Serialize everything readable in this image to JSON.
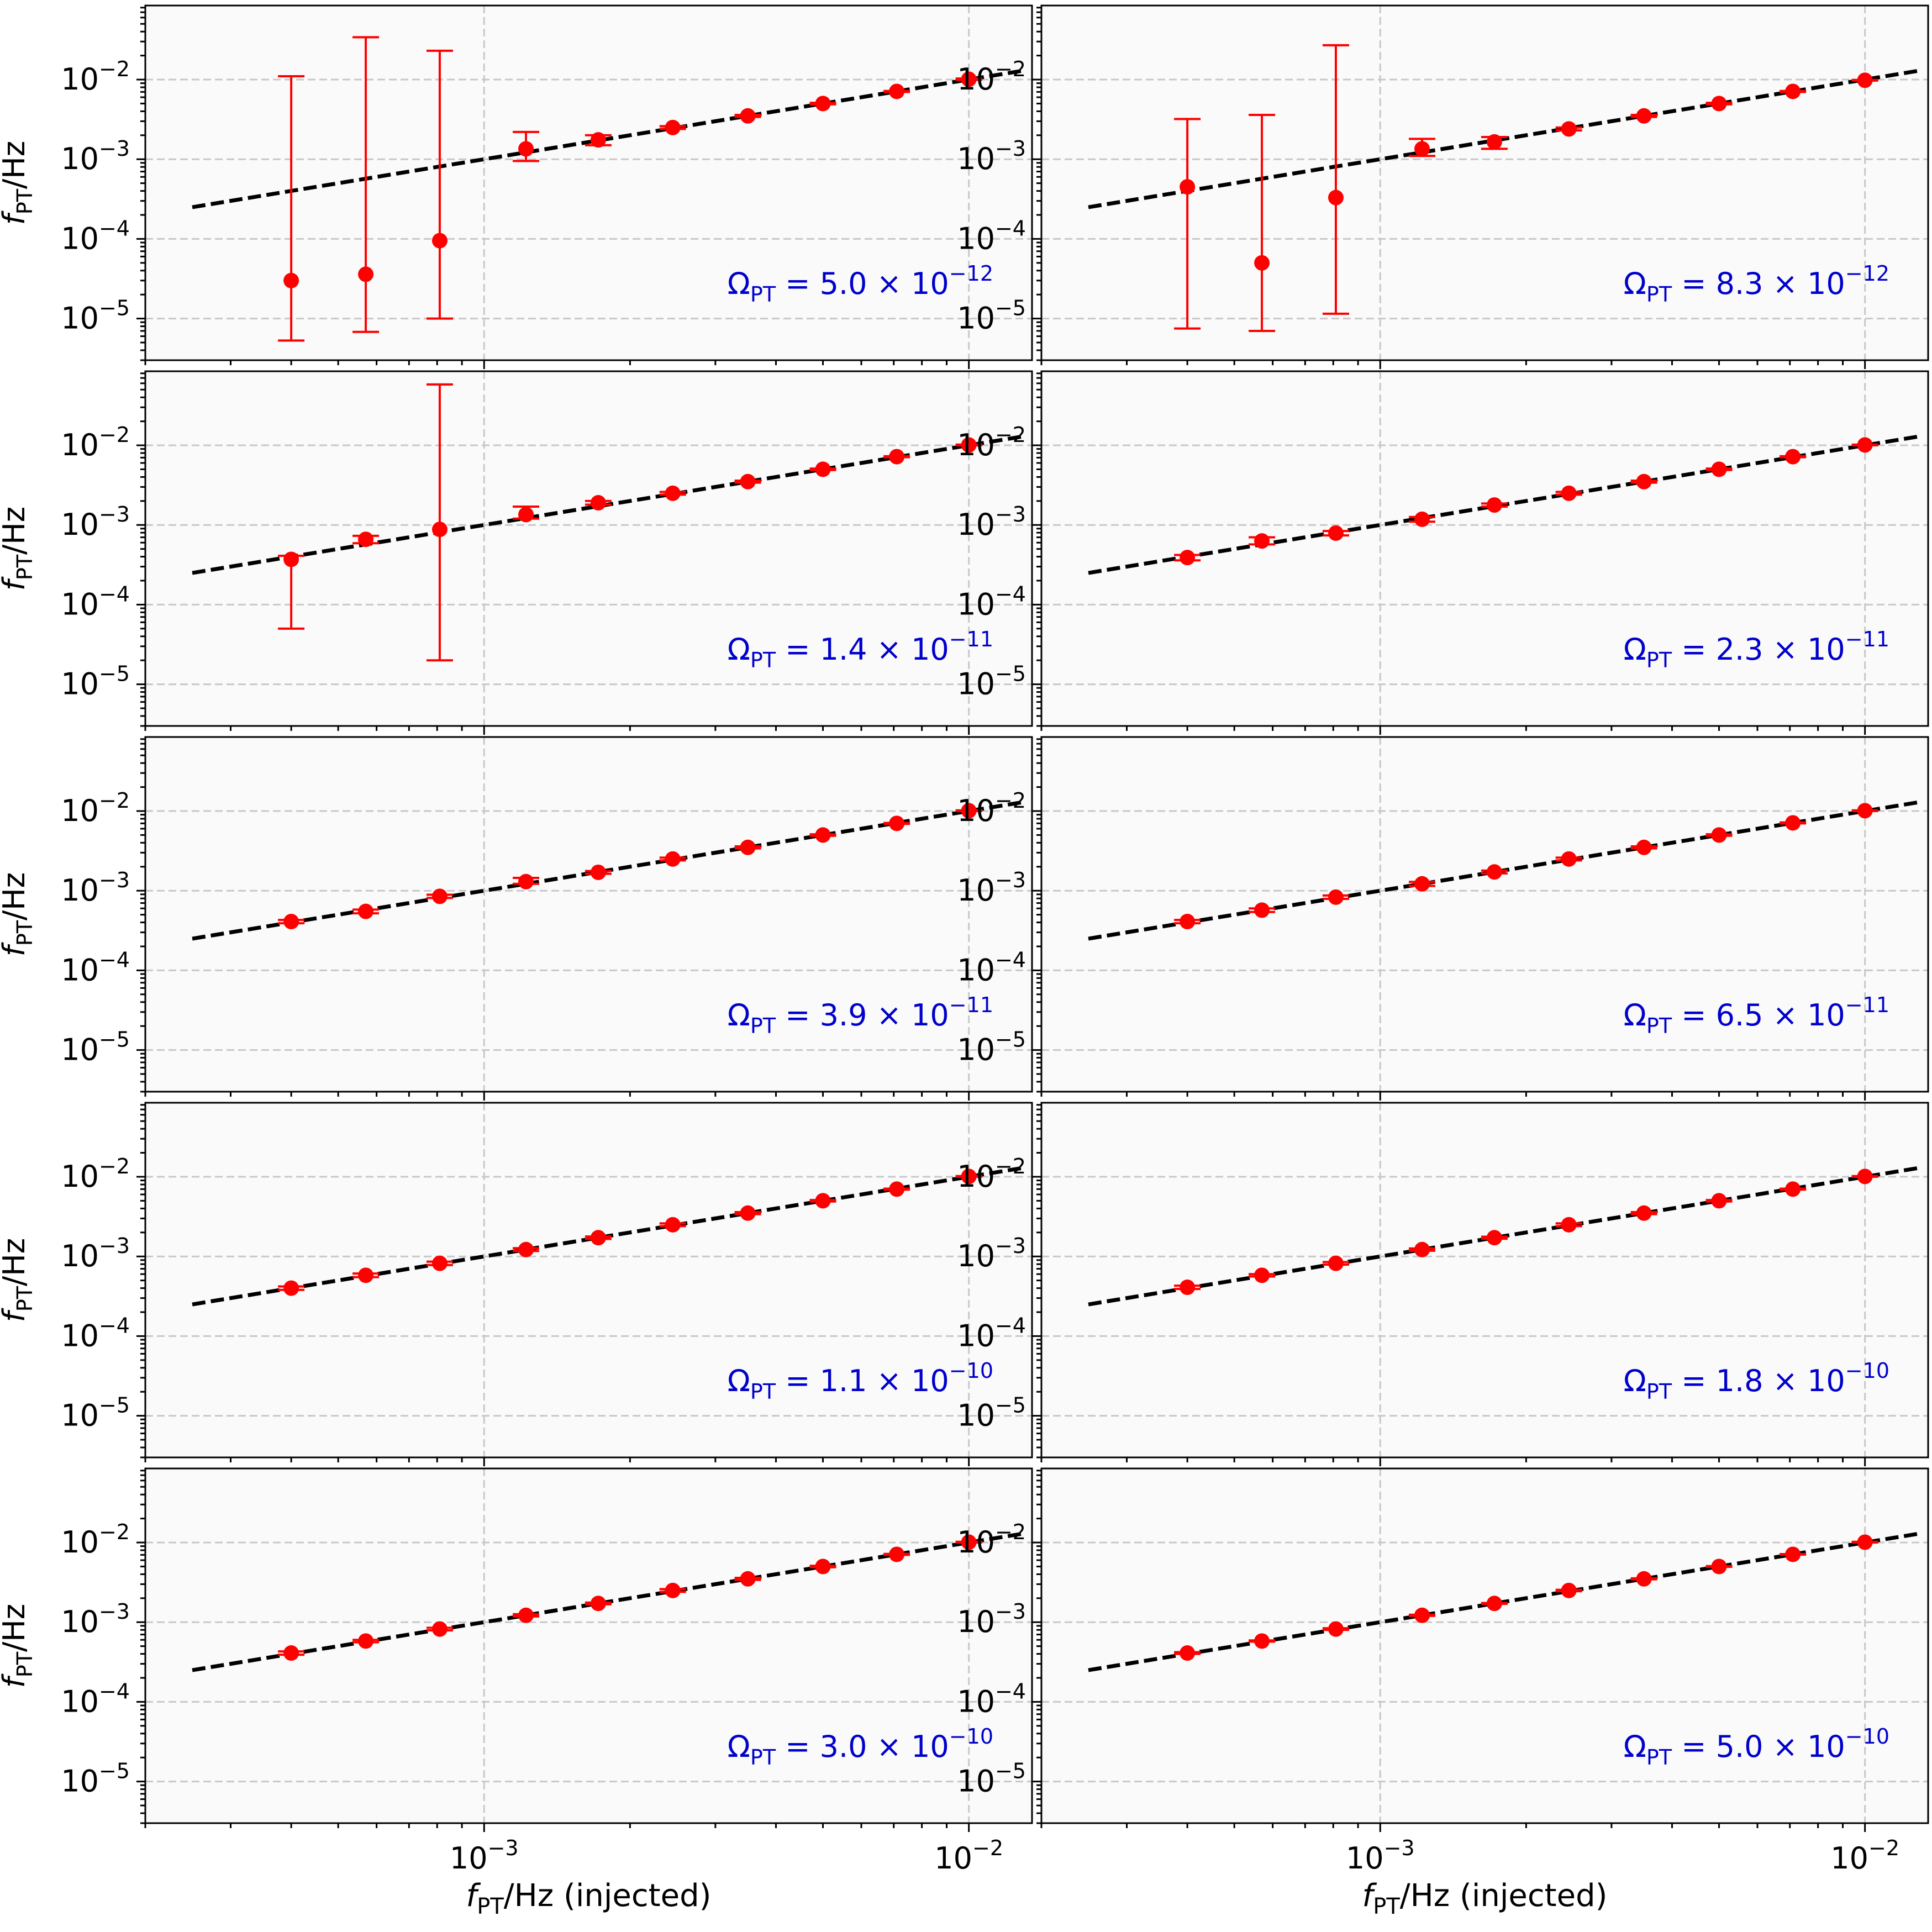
{
  "figure": {
    "x_label_main": "f",
    "x_label_sub": "PT",
    "x_label_rest": "/Hz (injected)",
    "y_label_main": "f",
    "y_label_sub": "PT",
    "y_label_rest": "/Hz",
    "x_ticks": [
      {
        "value": 0.001,
        "base": "10",
        "exp": "−3"
      },
      {
        "value": 0.01,
        "base": "10",
        "exp": "−2"
      }
    ],
    "y_ticks": [
      {
        "value": 0.01,
        "base": "10",
        "exp": "−2"
      },
      {
        "value": 0.001,
        "base": "10",
        "exp": "−3"
      },
      {
        "value": 0.0001,
        "base": "10",
        "exp": "−4"
      },
      {
        "value": 1e-05,
        "base": "10",
        "exp": "−5"
      }
    ],
    "colors": {
      "points": "#ff0000",
      "errorbars": "#ff0000",
      "fit_line": "#000000",
      "annotation": "#0000cc",
      "panel_background": "#fafafa",
      "grid": "#c8c8c8"
    }
  },
  "chart_data": [
    {
      "type": "scatter",
      "scale": "log-log",
      "grid": true,
      "xlim": [
        0.0002,
        0.0135
      ],
      "ylim": [
        3e-06,
        0.085
      ],
      "x_injected": [
        0.0004,
        0.00057,
        0.00081,
        0.00122,
        0.00172,
        0.00245,
        0.0035,
        0.005,
        0.0071,
        0.01
      ],
      "y_recovered": [
        3e-05,
        3.6e-05,
        9.5e-05,
        0.00135,
        0.00175,
        0.0025,
        0.0035,
        0.005,
        0.0071,
        0.0101
      ],
      "y_err_low": [
        5.3e-06,
        6.8e-06,
        1e-05,
        0.00095,
        0.0015,
        0.0024,
        0.0034,
        0.0049,
        0.007,
        0.0099
      ],
      "y_err_high": [
        0.011,
        0.034,
        0.023,
        0.0022,
        0.002,
        0.0026,
        0.0036,
        0.0051,
        0.0072,
        0.0103
      ],
      "reference_line": {
        "style": "dashed",
        "x_range": [
          0.00025,
          0.013
        ],
        "y_equals_x": true
      },
      "annotation": {
        "prefix": "Ω",
        "sub": "PT",
        "text": " = 5.0 × 10",
        "exp": "−12"
      }
    },
    {
      "type": "scatter",
      "scale": "log-log",
      "grid": true,
      "xlim": [
        0.0002,
        0.0135
      ],
      "ylim": [
        3e-06,
        0.085
      ],
      "x_injected": [
        0.0004,
        0.00057,
        0.00081,
        0.00122,
        0.00172,
        0.00245,
        0.0035,
        0.005,
        0.0071,
        0.01
      ],
      "y_recovered": [
        0.00045,
        5e-05,
        0.00033,
        0.00135,
        0.00165,
        0.0024,
        0.0035,
        0.005,
        0.0071,
        0.0098
      ],
      "y_err_low": [
        7.5e-06,
        7e-06,
        1.15e-05,
        0.0011,
        0.00135,
        0.0023,
        0.0034,
        0.0049,
        0.007,
        0.0097
      ],
      "y_err_high": [
        0.0032,
        0.0036,
        0.027,
        0.0018,
        0.0019,
        0.0025,
        0.0036,
        0.0051,
        0.0072,
        0.0099
      ],
      "reference_line": {
        "style": "dashed",
        "x_range": [
          0.00025,
          0.013
        ],
        "y_equals_x": true
      },
      "annotation": {
        "prefix": "Ω",
        "sub": "PT",
        "text": " = 8.3 × 10",
        "exp": "−12"
      }
    },
    {
      "type": "scatter",
      "scale": "log-log",
      "grid": true,
      "xlim": [
        0.0002,
        0.0135
      ],
      "ylim": [
        3e-06,
        0.085
      ],
      "x_injected": [
        0.0004,
        0.00057,
        0.00081,
        0.00122,
        0.00172,
        0.00245,
        0.0035,
        0.005,
        0.0071,
        0.01
      ],
      "y_recovered": [
        0.00037,
        0.00066,
        0.00088,
        0.00135,
        0.0019,
        0.0025,
        0.0035,
        0.005,
        0.0072,
        0.0101
      ],
      "y_err_low": [
        5e-05,
        0.00059,
        2e-05,
        0.0012,
        0.0018,
        0.0024,
        0.0034,
        0.0049,
        0.0071,
        0.01
      ],
      "y_err_high": [
        0.00041,
        0.00073,
        0.058,
        0.0017,
        0.002,
        0.0026,
        0.0036,
        0.0051,
        0.0073,
        0.0102
      ],
      "reference_line": {
        "style": "dashed",
        "x_range": [
          0.00025,
          0.013
        ],
        "y_equals_x": true
      },
      "annotation": {
        "prefix": "Ω",
        "sub": "PT",
        "text": " = 1.4 × 10",
        "exp": "−11"
      }
    },
    {
      "type": "scatter",
      "scale": "log-log",
      "grid": true,
      "xlim": [
        0.0002,
        0.0135
      ],
      "ylim": [
        3e-06,
        0.085
      ],
      "x_injected": [
        0.0004,
        0.00057,
        0.00081,
        0.00122,
        0.00172,
        0.00245,
        0.0035,
        0.005,
        0.0071,
        0.01
      ],
      "y_recovered": [
        0.00039,
        0.00063,
        0.00079,
        0.00118,
        0.00178,
        0.0025,
        0.0035,
        0.005,
        0.0072,
        0.0101
      ],
      "y_err_low": [
        0.00036,
        0.00057,
        0.00074,
        0.0011,
        0.0017,
        0.0024,
        0.0034,
        0.0049,
        0.0071,
        0.01
      ],
      "y_err_high": [
        0.00042,
        0.0007,
        0.00084,
        0.00126,
        0.00186,
        0.0026,
        0.0036,
        0.0051,
        0.0073,
        0.0102
      ],
      "reference_line": {
        "style": "dashed",
        "x_range": [
          0.00025,
          0.013
        ],
        "y_equals_x": true
      },
      "annotation": {
        "prefix": "Ω",
        "sub": "PT",
        "text": " = 2.3 × 10",
        "exp": "−11"
      }
    },
    {
      "type": "scatter",
      "scale": "log-log",
      "grid": true,
      "xlim": [
        0.0002,
        0.0135
      ],
      "ylim": [
        3e-06,
        0.085
      ],
      "x_injected": [
        0.0004,
        0.00057,
        0.00081,
        0.00122,
        0.00172,
        0.00245,
        0.0035,
        0.005,
        0.0071,
        0.01
      ],
      "y_recovered": [
        0.00041,
        0.00055,
        0.00085,
        0.0013,
        0.0017,
        0.0025,
        0.0035,
        0.005,
        0.007,
        0.0101
      ],
      "y_err_low": [
        0.00039,
        0.00052,
        0.00081,
        0.00122,
        0.00163,
        0.0024,
        0.0034,
        0.0049,
        0.0069,
        0.01
      ],
      "y_err_high": [
        0.00043,
        0.00058,
        0.00089,
        0.00145,
        0.00177,
        0.0026,
        0.0036,
        0.0051,
        0.0071,
        0.0102
      ],
      "reference_line": {
        "style": "dashed",
        "x_range": [
          0.00025,
          0.013
        ],
        "y_equals_x": true
      },
      "annotation": {
        "prefix": "Ω",
        "sub": "PT",
        "text": " = 3.9 × 10",
        "exp": "−11"
      }
    },
    {
      "type": "scatter",
      "scale": "log-log",
      "grid": true,
      "xlim": [
        0.0002,
        0.0135
      ],
      "ylim": [
        3e-06,
        0.085
      ],
      "x_injected": [
        0.0004,
        0.00057,
        0.00081,
        0.00122,
        0.00172,
        0.00245,
        0.0035,
        0.005,
        0.0071,
        0.01
      ],
      "y_recovered": [
        0.00041,
        0.00057,
        0.00083,
        0.00122,
        0.00172,
        0.0025,
        0.0035,
        0.005,
        0.0071,
        0.0101
      ],
      "y_err_low": [
        0.00039,
        0.00054,
        0.00079,
        0.00115,
        0.00165,
        0.0024,
        0.0034,
        0.0049,
        0.007,
        0.01
      ],
      "y_err_high": [
        0.00043,
        0.0006,
        0.00087,
        0.00129,
        0.00179,
        0.0026,
        0.0036,
        0.0051,
        0.0072,
        0.0102
      ],
      "reference_line": {
        "style": "dashed",
        "x_range": [
          0.00025,
          0.013
        ],
        "y_equals_x": true
      },
      "annotation": {
        "prefix": "Ω",
        "sub": "PT",
        "text": " = 6.5 × 10",
        "exp": "−11"
      }
    },
    {
      "type": "scatter",
      "scale": "log-log",
      "grid": true,
      "xlim": [
        0.0002,
        0.0135
      ],
      "ylim": [
        3e-06,
        0.085
      ],
      "x_injected": [
        0.0004,
        0.00057,
        0.00081,
        0.00122,
        0.00172,
        0.00245,
        0.0035,
        0.005,
        0.0071,
        0.01
      ],
      "y_recovered": [
        0.0004,
        0.00058,
        0.00082,
        0.00122,
        0.00172,
        0.0025,
        0.0035,
        0.005,
        0.007,
        0.0101
      ],
      "y_err_low": [
        0.00038,
        0.00055,
        0.00078,
        0.00117,
        0.00166,
        0.0024,
        0.0034,
        0.0049,
        0.0069,
        0.01
      ],
      "y_err_high": [
        0.00042,
        0.00061,
        0.00086,
        0.00127,
        0.00178,
        0.0026,
        0.0036,
        0.0051,
        0.0071,
        0.0102
      ],
      "reference_line": {
        "style": "dashed",
        "x_range": [
          0.00025,
          0.013
        ],
        "y_equals_x": true
      },
      "annotation": {
        "prefix": "Ω",
        "sub": "PT",
        "text": " = 1.1 × 10",
        "exp": "−10"
      }
    },
    {
      "type": "scatter",
      "scale": "log-log",
      "grid": true,
      "xlim": [
        0.0002,
        0.0135
      ],
      "ylim": [
        3e-06,
        0.085
      ],
      "x_injected": [
        0.0004,
        0.00057,
        0.00081,
        0.00122,
        0.00172,
        0.00245,
        0.0035,
        0.005,
        0.0071,
        0.01
      ],
      "y_recovered": [
        0.00041,
        0.00058,
        0.00082,
        0.00122,
        0.00172,
        0.0025,
        0.0035,
        0.005,
        0.007,
        0.0101
      ],
      "y_err_low": [
        0.00039,
        0.00056,
        0.00079,
        0.00118,
        0.00167,
        0.0024,
        0.0034,
        0.0049,
        0.0069,
        0.01
      ],
      "y_err_high": [
        0.00043,
        0.0006,
        0.00085,
        0.00126,
        0.00177,
        0.0026,
        0.0036,
        0.0051,
        0.0071,
        0.0102
      ],
      "reference_line": {
        "style": "dashed",
        "x_range": [
          0.00025,
          0.013
        ],
        "y_equals_x": true
      },
      "annotation": {
        "prefix": "Ω",
        "sub": "PT",
        "text": " = 1.8 × 10",
        "exp": "−10"
      }
    },
    {
      "type": "scatter",
      "scale": "log-log",
      "grid": true,
      "xlim": [
        0.0002,
        0.0135
      ],
      "ylim": [
        3e-06,
        0.085
      ],
      "x_injected": [
        0.0004,
        0.00057,
        0.00081,
        0.00122,
        0.00172,
        0.00245,
        0.0035,
        0.005,
        0.0071,
        0.01
      ],
      "y_recovered": [
        0.00041,
        0.00058,
        0.00082,
        0.00122,
        0.00172,
        0.0025,
        0.0035,
        0.005,
        0.0071,
        0.0101
      ],
      "y_err_low": [
        0.00039,
        0.00056,
        0.00079,
        0.00118,
        0.00168,
        0.0024,
        0.0034,
        0.0049,
        0.007,
        0.01
      ],
      "y_err_high": [
        0.00043,
        0.0006,
        0.00085,
        0.00126,
        0.00176,
        0.0026,
        0.0036,
        0.0051,
        0.0072,
        0.0102
      ],
      "reference_line": {
        "style": "dashed",
        "x_range": [
          0.00025,
          0.013
        ],
        "y_equals_x": true
      },
      "annotation": {
        "prefix": "Ω",
        "sub": "PT",
        "text": " = 3.0 × 10",
        "exp": "−10"
      }
    },
    {
      "type": "scatter",
      "scale": "log-log",
      "grid": true,
      "xlim": [
        0.0002,
        0.0135
      ],
      "ylim": [
        3e-06,
        0.085
      ],
      "x_injected": [
        0.0004,
        0.00057,
        0.00081,
        0.00122,
        0.00172,
        0.00245,
        0.0035,
        0.005,
        0.0071,
        0.01
      ],
      "y_recovered": [
        0.00041,
        0.00058,
        0.00082,
        0.00122,
        0.00172,
        0.0025,
        0.0035,
        0.005,
        0.0071,
        0.0101
      ],
      "y_err_low": [
        0.0004,
        0.00057,
        0.0008,
        0.0012,
        0.0017,
        0.00245,
        0.00345,
        0.00495,
        0.00705,
        0.01
      ],
      "y_err_high": [
        0.00042,
        0.00059,
        0.00084,
        0.00124,
        0.00174,
        0.00255,
        0.00355,
        0.00505,
        0.00715,
        0.0102
      ],
      "reference_line": {
        "style": "dashed",
        "x_range": [
          0.00025,
          0.013
        ],
        "y_equals_x": true
      },
      "annotation": {
        "prefix": "Ω",
        "sub": "PT",
        "text": " = 5.0 × 10",
        "exp": "−10"
      }
    }
  ]
}
